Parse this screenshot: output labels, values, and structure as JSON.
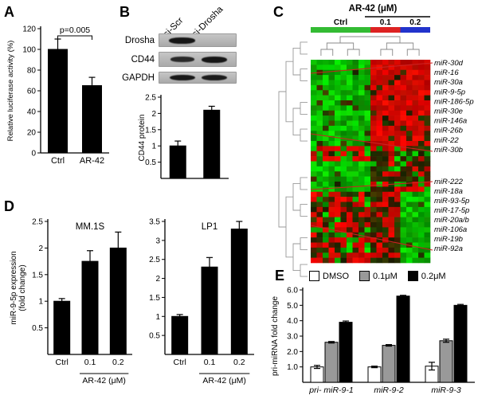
{
  "panel_labels": {
    "A": "A",
    "B": "B",
    "C": "C",
    "D": "D",
    "E": "E"
  },
  "blot": {
    "lanes": [
      "si-Scr",
      "si-Drosha"
    ],
    "rows": [
      {
        "label": "Drosha",
        "bands": [
          1,
          0
        ]
      },
      {
        "label": "CD44",
        "bands": [
          0.7,
          1
        ]
      },
      {
        "label": "GAPDH",
        "bands": [
          0.95,
          0.9
        ]
      }
    ]
  },
  "chart_data": [
    {
      "id": "luciferase",
      "panel": "A",
      "type": "bar",
      "annotation": "p=0.005",
      "categories": [
        "Ctrl",
        "AR-42"
      ],
      "values": [
        100,
        65
      ],
      "errors": [
        10,
        8
      ],
      "bar_color": "#000000",
      "ylabel": "Relative luciferase activity (%)",
      "ylim": [
        0,
        120
      ],
      "yticks": [
        0,
        20,
        40,
        60,
        80,
        100,
        120
      ]
    },
    {
      "id": "cd44-protein",
      "panel": "B",
      "type": "bar",
      "categories": [
        "",
        ""
      ],
      "values": [
        1.0,
        2.1
      ],
      "errors": [
        0.15,
        0.12
      ],
      "bar_color": "#000000",
      "ylabel": "CD44 protein",
      "ylim": [
        0,
        2.5
      ],
      "yticks": [
        0.5,
        1,
        1.5,
        2,
        2.5
      ]
    },
    {
      "id": "mir9-mm1s",
      "panel": "D",
      "type": "bar",
      "title": "MM.1S",
      "categories": [
        "Ctrl",
        "0.1",
        "0.2"
      ],
      "values": [
        1.0,
        1.75,
        2.0
      ],
      "errors": [
        0.05,
        0.2,
        0.3
      ],
      "bar_color": "#000000",
      "ylabel": "miR-9-5p expression\n(fold change)",
      "xlabel": "AR-42 (μM)",
      "ylim": [
        0,
        2.5
      ],
      "yticks": [
        0.5,
        1,
        1.5,
        2,
        2.5
      ]
    },
    {
      "id": "mir9-lp1",
      "panel": "D",
      "type": "bar",
      "title": "LP1",
      "categories": [
        "Ctrl",
        "0.1",
        "0.2"
      ],
      "values": [
        1.0,
        2.3,
        3.3
      ],
      "errors": [
        0.05,
        0.25,
        0.2
      ],
      "bar_color": "#000000",
      "xlabel": "AR-42 (μM)",
      "ylim": [
        0,
        3.5
      ],
      "yticks": [
        0.5,
        1,
        1.5,
        2,
        2.5,
        3,
        3.5
      ]
    },
    {
      "id": "pri-mirna",
      "panel": "E",
      "type": "bar",
      "categories": [
        "pri- miR-9-1",
        "miR-9-2",
        "miR-9-3"
      ],
      "series": [
        {
          "name": "DMSO",
          "color": "#ffffff",
          "values": [
            1.0,
            1.0,
            1.05
          ],
          "errors": [
            0.1,
            0.05,
            0.25
          ]
        },
        {
          "name": "0.1μM",
          "color": "#999999",
          "values": [
            2.6,
            2.4,
            2.7
          ],
          "errors": [
            0.05,
            0.05,
            0.1
          ]
        },
        {
          "name": "0.2μM",
          "color": "#000000",
          "values": [
            3.9,
            5.6,
            5.0
          ],
          "errors": [
            0.08,
            0.05,
            0.06
          ]
        }
      ],
      "ylabel": "pri-miRNA fold change",
      "ylim": [
        0,
        6
      ],
      "yticks": [
        1,
        2,
        3,
        4,
        5,
        6
      ],
      "legend_position": "top"
    },
    {
      "id": "mirna-heatmap",
      "panel": "C",
      "type": "heatmap",
      "title": "AR-42 (μM)",
      "groups": [
        {
          "label": "Ctrl",
          "color": "#33bb33",
          "columns": 10
        },
        {
          "label": "0.1",
          "color": "#dd2222",
          "columns": 5
        },
        {
          "label": "0.2",
          "color": "#2233cc",
          "columns": 5
        }
      ],
      "up_labels": [
        "miR-30d",
        "miR-16",
        "miR-30a",
        "miR-9-5p",
        "miR-186-5p",
        "miR-30e",
        "miR-146a",
        "miR-26b",
        "miR-22",
        "miR-30b"
      ],
      "down_labels": [
        "miR-222",
        "miR-18a",
        "miR-93-5p",
        "miR-17-5p",
        "miR-20a/b",
        "miR-106a",
        "miR-19b",
        "miR-92a"
      ],
      "leader_color": "#cc2222"
    }
  ]
}
